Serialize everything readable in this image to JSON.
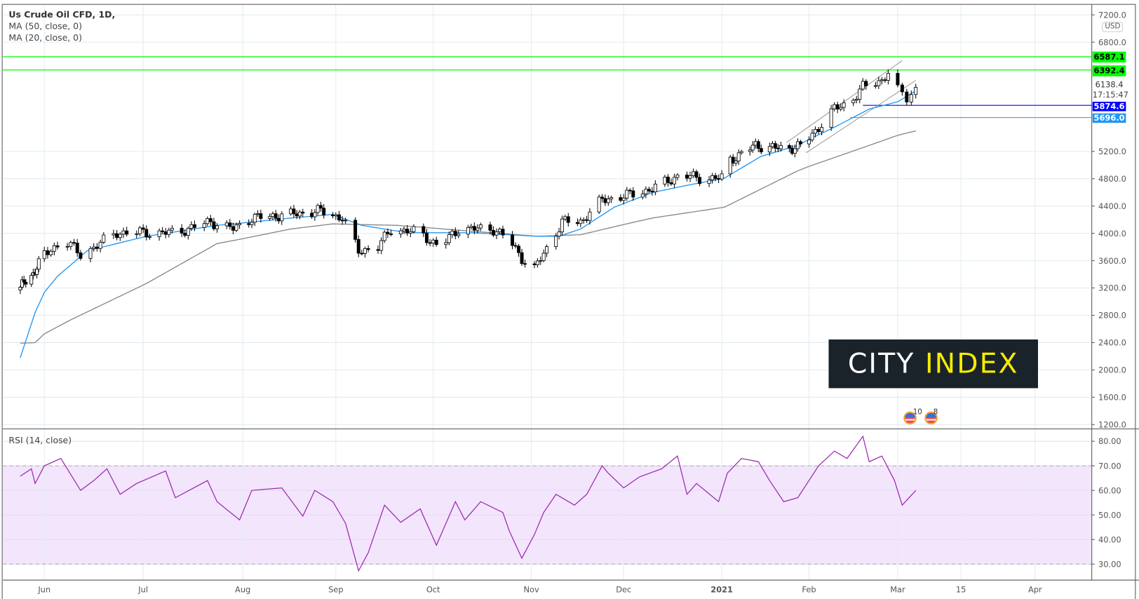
{
  "legend": {
    "title": "Us Crude Oil CFD, 1D,",
    "ma50": "MA (50, close, 0)",
    "ma20": "MA (20, close, 0)",
    "rsi": "RSI (14, close)"
  },
  "currency_button": "USD",
  "countdown": "17:15:47",
  "logo": {
    "word1": "CITY",
    "word2": "INDEX"
  },
  "events": [
    {
      "label": "10"
    },
    {
      "label": "8"
    }
  ],
  "colors": {
    "up": "#ffffff",
    "down": "#000000",
    "ma20": "#2196f3",
    "ma50": "#888888",
    "rsi": "#9c27b0",
    "rsi_band": "#f3e5fc",
    "resistance": "#00ff00",
    "support1": "#0000ff",
    "support2": "#2196f3",
    "channel": "#999999"
  },
  "chart_data": [
    {
      "type": "candlestick",
      "title": "Us Crude Oil CFD, 1D",
      "ylim": [
        1200,
        7200
      ],
      "y_ticks": [
        "7200.0",
        "6800.0",
        "5200.0",
        "4800.0",
        "4400.0",
        "4000.0",
        "3600.0",
        "3200.0",
        "2800.0",
        "2400.0",
        "2000.0",
        "1600.0",
        "1200.0"
      ],
      "x_ticks": [
        {
          "label": "Jun",
          "date": "2020-06-01"
        },
        {
          "label": "Jul",
          "date": "2020-07-01"
        },
        {
          "label": "Aug",
          "date": "2020-08-01"
        },
        {
          "label": "Sep",
          "date": "2020-09-01"
        },
        {
          "label": "Oct",
          "date": "2020-10-01"
        },
        {
          "label": "Nov",
          "date": "2020-11-01"
        },
        {
          "label": "Dec",
          "date": "2020-12-01"
        },
        {
          "label": "2021",
          "date": "2021-01-01"
        },
        {
          "label": "Feb",
          "date": "2021-02-01"
        },
        {
          "label": "Mar",
          "date": "2021-03-01"
        },
        {
          "label": "15",
          "date": "2021-03-15"
        },
        {
          "label": "Apr",
          "date": "2021-04-01"
        }
      ],
      "close_approx": [
        [
          "2020-05-19",
          3212
        ],
        [
          "2020-05-25",
          3372
        ],
        [
          "2020-06-01",
          3690
        ],
        [
          "2020-06-07",
          3904
        ],
        [
          "2020-06-12",
          3690
        ],
        [
          "2020-06-16",
          3797
        ],
        [
          "2020-06-23",
          4010
        ],
        [
          "2020-07-02",
          4010
        ],
        [
          "2020-07-11",
          4010
        ],
        [
          "2020-07-22",
          4170
        ],
        [
          "2020-07-29",
          4064
        ],
        [
          "2020-08-04",
          4224
        ],
        [
          "2020-08-17",
          4277
        ],
        [
          "2020-08-27",
          4330
        ],
        [
          "2020-09-03",
          4224
        ],
        [
          "2020-09-08",
          3744
        ],
        [
          "2020-09-14",
          3797
        ],
        [
          "2020-09-18",
          4064
        ],
        [
          "2020-09-27",
          4010
        ],
        [
          "2020-10-03",
          3797
        ],
        [
          "2020-10-09",
          4064
        ],
        [
          "2020-10-20",
          4064
        ],
        [
          "2020-10-25",
          3904
        ],
        [
          "2020-10-29",
          3638
        ],
        [
          "2020-11-02",
          3478
        ],
        [
          "2020-11-07",
          3850
        ],
        [
          "2020-11-11",
          4170
        ],
        [
          "2020-11-17",
          4170
        ],
        [
          "2020-11-24",
          4490
        ],
        [
          "2020-12-01",
          4543
        ],
        [
          "2020-12-10",
          4650
        ],
        [
          "2020-12-19",
          4863
        ],
        [
          "2020-12-24",
          4810
        ],
        [
          "2021-01-01",
          4810
        ],
        [
          "2021-01-04",
          5075
        ],
        [
          "2021-01-13",
          5288
        ],
        [
          "2021-01-23",
          5235
        ],
        [
          "2021-01-30",
          5288
        ],
        [
          "2021-02-05",
          5608
        ],
        [
          "2021-02-09",
          5820
        ],
        [
          "2021-02-14",
          5927
        ],
        [
          "2021-02-18",
          6140
        ],
        [
          "2021-02-24",
          6246
        ],
        [
          "2021-02-26",
          6353
        ],
        [
          "2021-03-01",
          6087
        ],
        [
          "2021-03-03",
          5980
        ],
        [
          "2021-03-05",
          6138.4
        ]
      ],
      "last_price": "6138.4",
      "ma50_approx": [
        [
          "2020-05-19",
          2392
        ],
        [
          "2020-05-27",
          2400
        ],
        [
          "2020-06-09",
          2733
        ],
        [
          "2020-07-02",
          3266
        ],
        [
          "2020-07-24",
          3850
        ],
        [
          "2020-08-17",
          4064
        ],
        [
          "2020-08-31",
          4138
        ],
        [
          "2020-09-20",
          4117
        ],
        [
          "2020-10-13",
          4032
        ],
        [
          "2020-11-03",
          3957
        ],
        [
          "2020-11-17",
          3980
        ],
        [
          "2020-12-10",
          4224
        ],
        [
          "2021-01-02",
          4384
        ],
        [
          "2021-01-28",
          4916
        ],
        [
          "2021-02-20",
          5288
        ],
        [
          "2021-03-05",
          5501
        ]
      ],
      "ma20_approx": [
        [
          "2020-05-19",
          2179
        ],
        [
          "2020-05-27",
          2840
        ],
        [
          "2020-06-05",
          3372
        ],
        [
          "2020-06-14",
          3744
        ],
        [
          "2020-07-02",
          3957
        ],
        [
          "2020-07-24",
          4117
        ],
        [
          "2020-08-17",
          4224
        ],
        [
          "2020-08-31",
          4277
        ],
        [
          "2020-09-09",
          4117
        ],
        [
          "2020-09-23",
          4010
        ],
        [
          "2020-10-13",
          4010
        ],
        [
          "2020-11-03",
          3957
        ],
        [
          "2020-11-10",
          3957
        ],
        [
          "2020-11-17",
          4064
        ],
        [
          "2020-11-28",
          4384
        ],
        [
          "2020-12-10",
          4597
        ],
        [
          "2020-12-21",
          4703
        ],
        [
          "2021-01-02",
          4810
        ],
        [
          "2021-01-15",
          5128
        ],
        [
          "2021-01-28",
          5288
        ],
        [
          "2021-02-09",
          5554
        ],
        [
          "2021-02-20",
          5820
        ],
        [
          "2021-03-01",
          5927
        ],
        [
          "2021-03-05",
          6087
        ]
      ],
      "horizontal_levels": [
        {
          "value": "6587.1",
          "color": "#00ff00"
        },
        {
          "value": "6392.4",
          "color": "#00ff00"
        },
        {
          "value": "5874.6",
          "color": "#0000ff"
        },
        {
          "value": "5696.0",
          "color": "#2196f3"
        }
      ],
      "channel": [
        {
          "from": [
            "2021-01-24",
            5330
          ],
          "to": [
            "2021-03-02",
            6530
          ]
        },
        {
          "from": [
            "2021-01-31",
            5180
          ],
          "to": [
            "2021-03-05",
            6240
          ]
        }
      ]
    },
    {
      "type": "line",
      "title": "RSI (14, close)",
      "ylim": [
        25,
        84
      ],
      "y_ticks": [
        "80.00",
        "70.00",
        "60.00",
        "50.00",
        "40.00",
        "30.00"
      ],
      "band": [
        30,
        70
      ],
      "values": [
        [
          "2020-05-19",
          65.8
        ],
        [
          "2020-05-25",
          68.8
        ],
        [
          "2020-05-27",
          62.8
        ],
        [
          "2020-06-01",
          70
        ],
        [
          "2020-06-06",
          73
        ],
        [
          "2020-06-12",
          60
        ],
        [
          "2020-06-16",
          64
        ],
        [
          "2020-06-20",
          68.8
        ],
        [
          "2020-06-24",
          58.4
        ],
        [
          "2020-06-29",
          62.8
        ],
        [
          "2020-07-08",
          67.9
        ],
        [
          "2020-07-11",
          57
        ],
        [
          "2020-07-21",
          64
        ],
        [
          "2020-07-24",
          55.4
        ],
        [
          "2020-07-31",
          48
        ],
        [
          "2020-08-04",
          60
        ],
        [
          "2020-08-14",
          61
        ],
        [
          "2020-08-21",
          49.5
        ],
        [
          "2020-08-25",
          60
        ],
        [
          "2020-08-31",
          55.4
        ],
        [
          "2020-09-04",
          46.6
        ],
        [
          "2020-09-08",
          27.3
        ],
        [
          "2020-09-11",
          34.7
        ],
        [
          "2020-09-16",
          54
        ],
        [
          "2020-09-21",
          47
        ],
        [
          "2020-09-27",
          52.5
        ],
        [
          "2020-10-02",
          37.7
        ],
        [
          "2020-10-08",
          55.4
        ],
        [
          "2020-10-11",
          48
        ],
        [
          "2020-10-16",
          55.4
        ],
        [
          "2020-10-23",
          51
        ],
        [
          "2020-10-25",
          43.6
        ],
        [
          "2020-10-29",
          32.4
        ],
        [
          "2020-11-02",
          42
        ],
        [
          "2020-11-05",
          51
        ],
        [
          "2020-11-09",
          58.4
        ],
        [
          "2020-11-15",
          54
        ],
        [
          "2020-11-19",
          58.4
        ],
        [
          "2020-11-24",
          70
        ],
        [
          "2020-11-26",
          67
        ],
        [
          "2020-12-01",
          61
        ],
        [
          "2020-12-06",
          65.5
        ],
        [
          "2020-12-13",
          68.8
        ],
        [
          "2020-12-18",
          74
        ],
        [
          "2020-12-21",
          58.4
        ],
        [
          "2020-12-24",
          62.8
        ],
        [
          "2020-12-31",
          55.4
        ],
        [
          "2021-01-03",
          67
        ],
        [
          "2021-01-08",
          73
        ],
        [
          "2021-01-14",
          71.7
        ],
        [
          "2021-01-18",
          64
        ],
        [
          "2021-01-23",
          55.4
        ],
        [
          "2021-01-28",
          57
        ],
        [
          "2021-02-04",
          70
        ],
        [
          "2021-02-09",
          76
        ],
        [
          "2021-02-13",
          73
        ],
        [
          "2021-02-18",
          82
        ],
        [
          "2021-02-20",
          71.7
        ],
        [
          "2021-02-24",
          74
        ],
        [
          "2021-02-28",
          64
        ],
        [
          "2021-03-02",
          54
        ],
        [
          "2021-03-05",
          60
        ]
      ]
    }
  ]
}
